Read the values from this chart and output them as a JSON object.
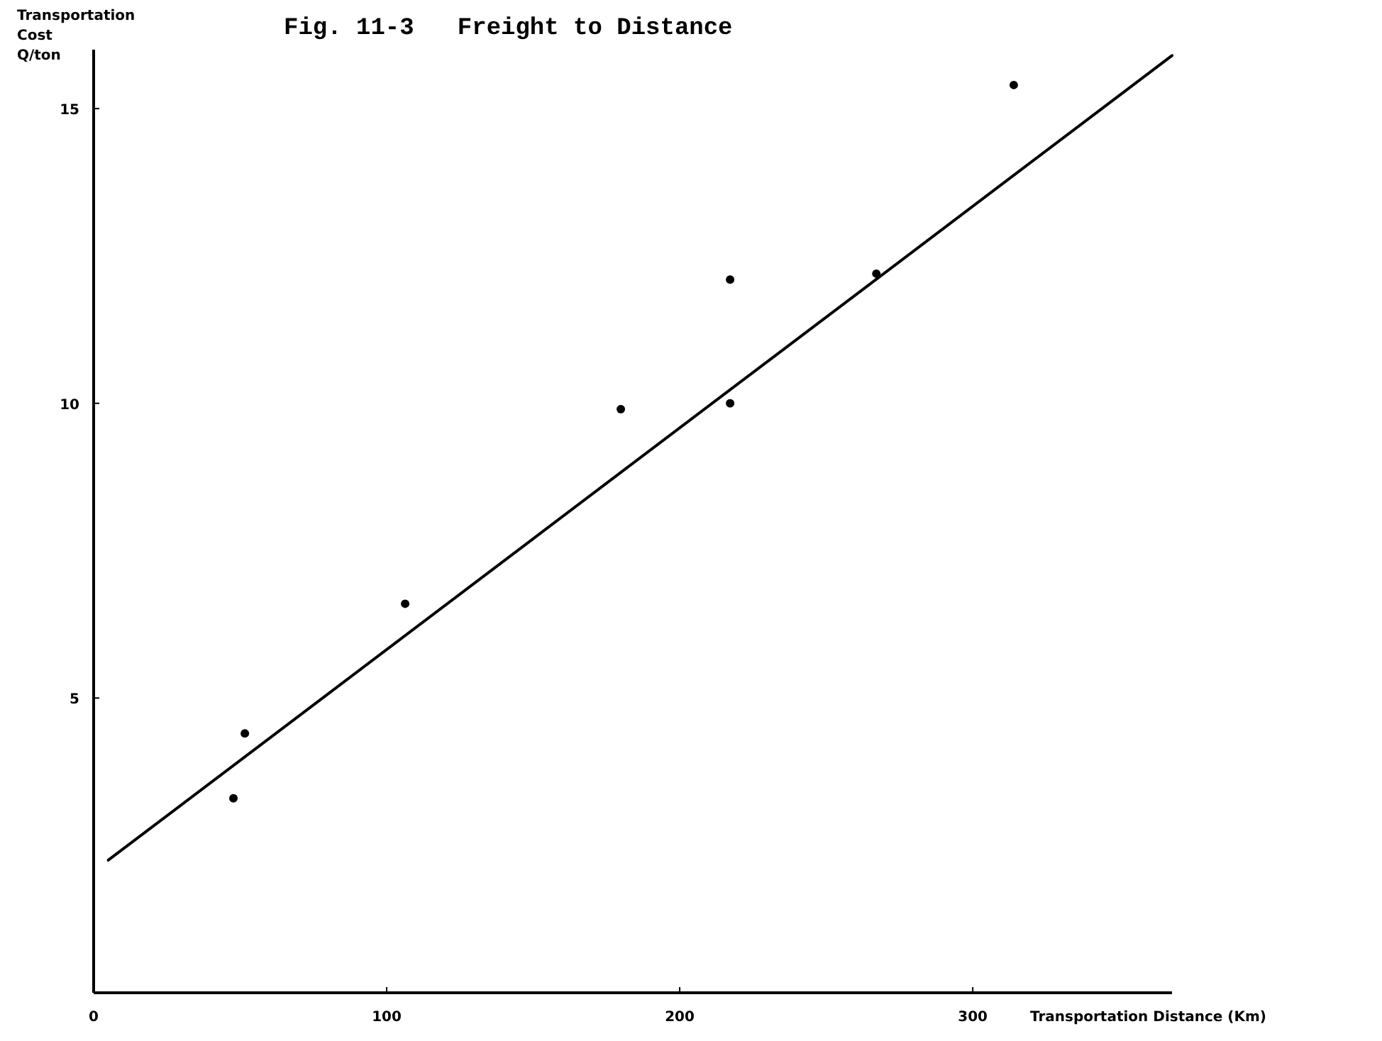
{
  "chart_data": {
    "type": "scatter",
    "title": "Fig. 11-3   Freight to Distance",
    "xlabel": "Transportation Distance (Km)",
    "ylabel": "Transportation Cost Q/ton",
    "xlim": [
      0,
      368
    ],
    "ylim": [
      0,
      16
    ],
    "xticks": [
      0,
      100,
      200,
      300
    ],
    "yticks": [
      5,
      10,
      15
    ],
    "grid": false,
    "marker": "circle",
    "series": [
      {
        "color": "#000000",
        "x": [
          47.7,
          51.6,
          106.3,
          179.9,
          217.2,
          217.2,
          267.1,
          314.0
        ],
        "values": [
          3.3,
          4.4,
          6.6,
          9.9,
          12.1,
          10.0,
          12.2,
          15.4
        ]
      },
      {
        "type": "line",
        "color": "#000000",
        "x": [
          5,
          368
        ],
        "values": [
          2.25,
          15.9
        ],
        "marker": "none",
        "line_style": "solid"
      }
    ]
  }
}
